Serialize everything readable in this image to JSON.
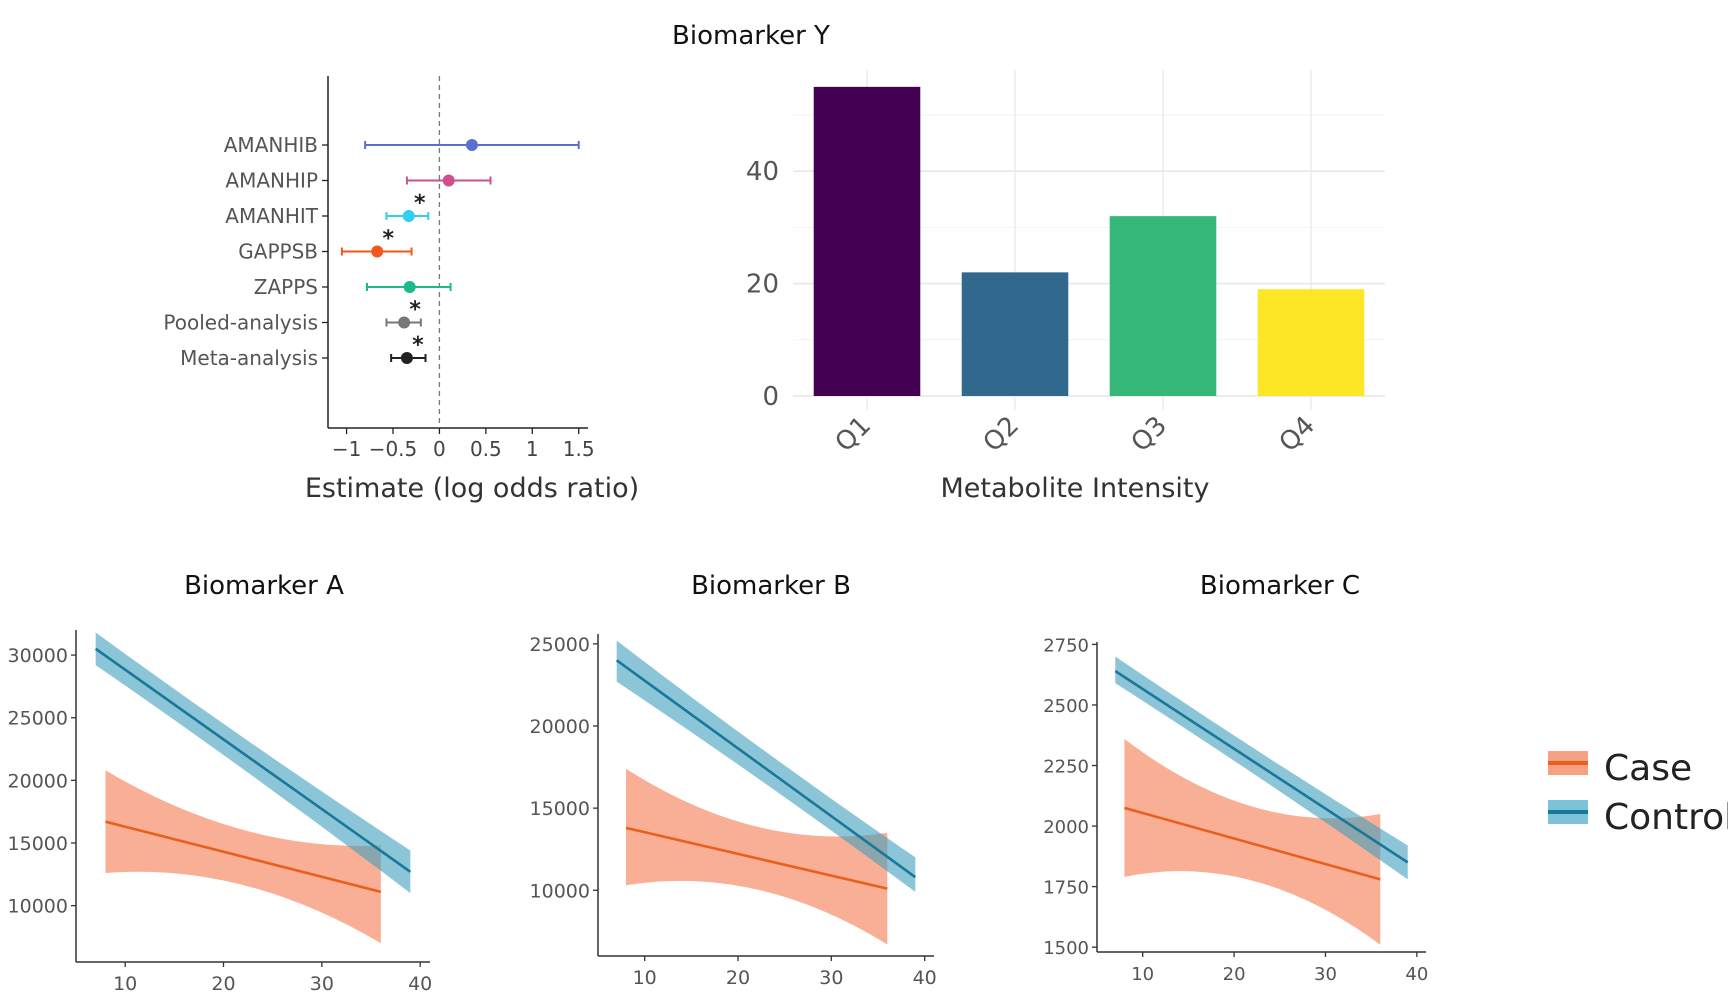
{
  "chart_data": [
    {
      "id": "forest",
      "type": "scatter",
      "title": "",
      "xlabel": "Estimate (log odds ratio)",
      "ylabel": "",
      "xlim": [
        -1.2,
        1.6
      ],
      "xticks": [
        -1,
        -0.5,
        0,
        0.5,
        1,
        1.5
      ],
      "xtick_labels": [
        "−1",
        "−0.5",
        "0",
        "0.5",
        "1",
        "1.5"
      ],
      "reference_line": 0,
      "rows": [
        {
          "label": "AMANHIB",
          "estimate": 0.35,
          "lower": -0.8,
          "upper": 1.5,
          "significant": false,
          "color": "#5b6fd0"
        },
        {
          "label": "AMANHIP",
          "estimate": 0.1,
          "lower": -0.35,
          "upper": 0.55,
          "significant": false,
          "color": "#d04f8e"
        },
        {
          "label": "AMANHIT",
          "estimate": -0.33,
          "lower": -0.57,
          "upper": -0.12,
          "significant": true,
          "color": "#2fd0f0"
        },
        {
          "label": "GAPPSB",
          "estimate": -0.67,
          "lower": -1.05,
          "upper": -0.3,
          "significant": true,
          "color": "#f0581e"
        },
        {
          "label": "ZAPPS",
          "estimate": -0.32,
          "lower": -0.78,
          "upper": 0.12,
          "significant": false,
          "color": "#1cb98a"
        },
        {
          "label": "Pooled-analysis",
          "estimate": -0.38,
          "lower": -0.57,
          "upper": -0.2,
          "significant": true,
          "color": "#777777"
        },
        {
          "label": "Meta-analysis",
          "estimate": -0.35,
          "lower": -0.52,
          "upper": -0.15,
          "significant": true,
          "color": "#222222"
        }
      ],
      "significance_marker": "*"
    },
    {
      "id": "biomarker-y",
      "type": "bar",
      "title": "Biomarker Y",
      "xlabel": "Metabolite Intensity",
      "ylabel": "",
      "categories": [
        "Q1",
        "Q2",
        "Q3",
        "Q4"
      ],
      "values": [
        55,
        22,
        32,
        19
      ],
      "colors": [
        "#440154",
        "#31688e",
        "#35b779",
        "#fde725"
      ],
      "ylim": [
        0,
        58
      ],
      "yticks": [
        0,
        20,
        40
      ],
      "grid": true
    },
    {
      "id": "biomarker-a",
      "type": "line",
      "title": "Biomarker A",
      "xlabel": "",
      "ylabel": "",
      "xlim": [
        5,
        41
      ],
      "ylim": [
        5500,
        32000
      ],
      "xticks": [
        10,
        20,
        30,
        40
      ],
      "yticks": [
        10000,
        15000,
        20000,
        25000,
        30000
      ],
      "series": [
        {
          "name": "Control",
          "x": [
            7,
            39
          ],
          "y": [
            30500,
            12700
          ],
          "band_lower": [
            29200,
            11000
          ],
          "band_upper": [
            31800,
            14400
          ]
        },
        {
          "name": "Case",
          "x": [
            8,
            36
          ],
          "y": [
            16700,
            11100
          ],
          "band_lower": [
            12600,
            7000
          ],
          "band_upper": [
            20800,
            14800
          ]
        }
      ]
    },
    {
      "id": "biomarker-b",
      "type": "line",
      "title": "Biomarker B",
      "xlabel": "",
      "ylabel": "",
      "xlim": [
        5,
        41
      ],
      "ylim": [
        6000,
        25600
      ],
      "xticks": [
        10,
        20,
        30,
        40
      ],
      "yticks": [
        10000,
        15000,
        20000,
        25000
      ],
      "series": [
        {
          "name": "Control",
          "x": [
            7,
            39
          ],
          "y": [
            24000,
            10800
          ],
          "band_lower": [
            22700,
            9900
          ],
          "band_upper": [
            25200,
            12000
          ]
        },
        {
          "name": "Case",
          "x": [
            8,
            36
          ],
          "y": [
            13800,
            10100
          ],
          "band_lower": [
            10300,
            6700
          ],
          "band_upper": [
            17400,
            13500
          ]
        }
      ]
    },
    {
      "id": "biomarker-c",
      "type": "line",
      "title": "Biomarker C",
      "xlabel": "",
      "ylabel": "",
      "xlim": [
        5,
        41
      ],
      "ylim": [
        1480,
        2760
      ],
      "xticks": [
        10,
        20,
        30,
        40
      ],
      "yticks": [
        1500,
        1750,
        2000,
        2250,
        2500,
        2750
      ],
      "series": [
        {
          "name": "Control",
          "x": [
            7,
            39
          ],
          "y": [
            2640,
            1850
          ],
          "band_lower": [
            2590,
            1780
          ],
          "band_upper": [
            2700,
            1920
          ]
        },
        {
          "name": "Case",
          "x": [
            8,
            36
          ],
          "y": [
            2075,
            1780
          ],
          "band_lower": [
            1790,
            1510
          ],
          "band_upper": [
            2360,
            2050
          ]
        }
      ]
    }
  ],
  "legend": {
    "position": "right",
    "items": [
      {
        "label": "Case",
        "line_color": "#e8601c",
        "band_color": "#f8a182"
      },
      {
        "label": "Control",
        "line_color": "#17789a",
        "band_color": "#7cc2d8"
      }
    ]
  }
}
